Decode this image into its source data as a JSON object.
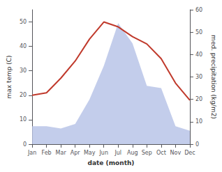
{
  "chart_data": {
    "type": "line",
    "xlabel": "date (month)",
    "ylabel": "max temp (C)",
    "y2label": "med. precipitation (kg/m2)",
    "categories": [
      "Jan",
      "Feb",
      "Mar",
      "Apr",
      "May",
      "Jun",
      "Jul",
      "Aug",
      "Sep",
      "Oct",
      "Nov",
      "Dec"
    ],
    "series": [
      {
        "type": "area",
        "color": "#b8c4e8",
        "axis": "y2",
        "values": [
          8,
          8,
          7,
          9,
          20,
          35,
          54,
          45,
          26,
          25,
          8,
          6
        ]
      },
      {
        "type": "line",
        "color": "#c0392b",
        "values": [
          20,
          21,
          27,
          34,
          43,
          50,
          48,
          44,
          41,
          35,
          25,
          18
        ]
      }
    ],
    "ylim": [
      0,
      55
    ],
    "yticks": [
      0,
      10,
      20,
      30,
      40,
      50
    ],
    "y2lim": [
      0,
      60
    ],
    "y2ticks": [
      0,
      10,
      20,
      30,
      40,
      50,
      60
    ],
    "grid": false
  }
}
